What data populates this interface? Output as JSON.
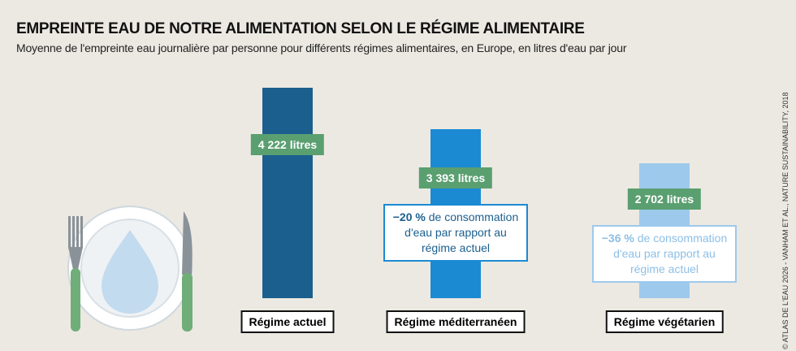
{
  "chart_data": {
    "type": "bar",
    "title": "EMPREINTE EAU DE NOTRE ALIMENTATION SELON LE RÉGIME ALIMENTAIRE",
    "subtitle": "Moyenne de l'empreinte eau journalière par personne pour différents régimes alimentaires, en Europe, en litres d'eau par jour",
    "categories": [
      "Régime actuel",
      "Régime méditerranéen",
      "Régime végétarien"
    ],
    "values": [
      4222,
      3393,
      2702
    ],
    "value_labels": [
      "4 222 litres",
      "3 393 litres",
      "2 702 litres"
    ],
    "colors": [
      "#1b5f8e",
      "#1b8ad3",
      "#9dc9ec"
    ],
    "annotations": [
      null,
      {
        "bold": "−20 %",
        "text": "de consommation d'eau par rapport au régime actuel",
        "color": "#1b8ad3",
        "text_color": "#1b5f8e"
      },
      {
        "bold": "−36 %",
        "text": "de consommation d'eau par rapport au régime actuel",
        "color": "#9dc9ec",
        "text_color": "#8cbfe6"
      }
    ],
    "source": "© ATLAS DE L'EAU 2026 - VANHAM ET AL., NATURE SUSTAINABILITY, 2018"
  }
}
